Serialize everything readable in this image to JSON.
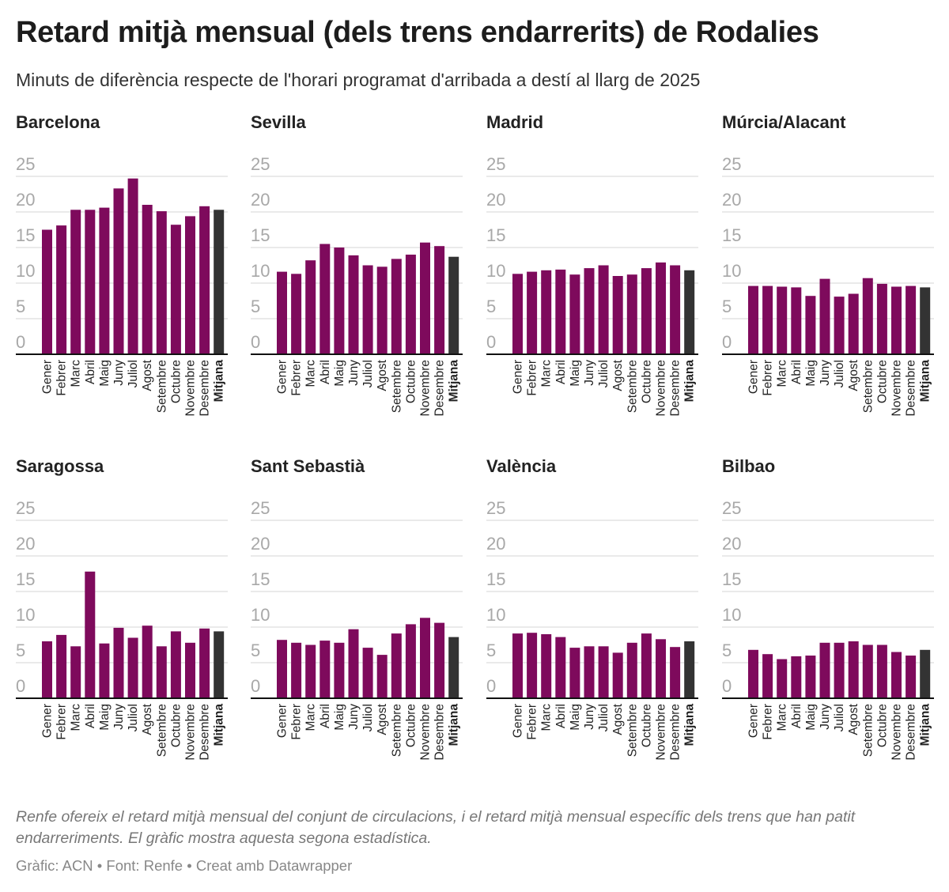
{
  "title": "Retard mitjà mensual (dels trens endarrerits) de Rodalies",
  "subtitle": "Minuts de diferència respecte de l'horari programat d'arribada a destí al llarg de 2025",
  "notes": "Renfe ofereix el retard mitjà mensual del conjunt de circulacions, i el retard mitjà mensual específic dels trens que han patit endarreriments. El gràfic mostra aquesta segona estadística.",
  "credit": "Gràfic: ACN • Font: Renfe • Creat amb Datawrapper",
  "colors": {
    "bar": "#7e0a5c",
    "average": "#333333",
    "grid": "#e3e3e3",
    "tick": "#a8a8a8"
  },
  "chart_data": {
    "type": "bar",
    "layout": "small-multiples",
    "categories": [
      "Gener",
      "Febrer",
      "Marc",
      "Abril",
      "Maig",
      "Juny",
      "Juliol",
      "Agost",
      "Setembre",
      "Octubre",
      "Novembre",
      "Desembre",
      "Mitjana"
    ],
    "highlight_category": "Mitjana",
    "ylim": [
      0,
      25
    ],
    "yticks": [
      0,
      5,
      10,
      15,
      20,
      25
    ],
    "grid": true,
    "panels": [
      {
        "name": "Barcelona",
        "values": [
          17.5,
          18.1,
          20.3,
          20.3,
          20.6,
          23.3,
          24.7,
          21.0,
          20.1,
          18.2,
          19.4,
          20.8,
          20.3
        ]
      },
      {
        "name": "Sevilla",
        "values": [
          11.6,
          11.3,
          13.2,
          15.5,
          15.0,
          13.9,
          12.5,
          12.3,
          13.4,
          14.0,
          15.7,
          15.2,
          13.7
        ]
      },
      {
        "name": "Madrid",
        "values": [
          11.3,
          11.6,
          11.8,
          11.9,
          11.2,
          12.1,
          12.5,
          11.0,
          11.2,
          12.1,
          12.9,
          12.5,
          11.8
        ]
      },
      {
        "name": "Múrcia/Alacant",
        "values": [
          9.6,
          9.6,
          9.5,
          9.4,
          8.2,
          10.6,
          8.1,
          8.5,
          10.7,
          9.9,
          9.5,
          9.6,
          9.4
        ]
      },
      {
        "name": "Saragossa",
        "values": [
          8.0,
          8.9,
          7.3,
          17.8,
          7.7,
          9.9,
          8.5,
          10.2,
          7.3,
          9.4,
          7.8,
          9.8,
          9.4
        ]
      },
      {
        "name": "Sant Sebastià",
        "values": [
          8.2,
          7.8,
          7.5,
          8.1,
          7.8,
          9.7,
          7.1,
          6.1,
          9.1,
          10.4,
          11.3,
          10.6,
          8.6
        ]
      },
      {
        "name": "València",
        "values": [
          9.1,
          9.2,
          9.0,
          8.6,
          7.1,
          7.3,
          7.3,
          6.4,
          7.8,
          9.1,
          8.3,
          7.2,
          8.0
        ]
      },
      {
        "name": "Bilbao",
        "values": [
          6.8,
          6.2,
          5.5,
          5.9,
          6.0,
          7.8,
          7.8,
          8.0,
          7.5,
          7.5,
          6.5,
          6.0,
          6.8
        ]
      }
    ]
  }
}
